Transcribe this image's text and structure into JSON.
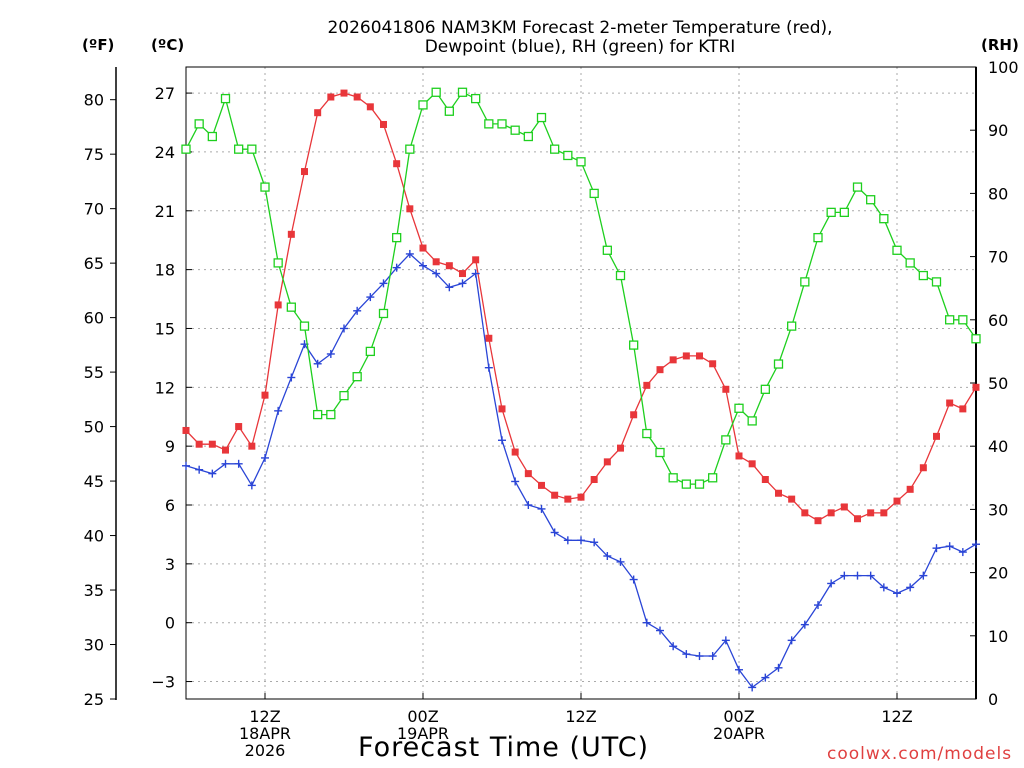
{
  "header": {
    "title_line1": "2026041806 NAM3KM Forecast 2-meter Temperature (red),",
    "title_line2": "Dewpoint (blue), RH (green) for KTRI",
    "unit_f": "(ºF)",
    "unit_c": "(ºC)",
    "unit_rh": "(RH)"
  },
  "footer": {
    "x_title": "Forecast Time (UTC)",
    "credit": "coolwx.com/models"
  },
  "colors": {
    "temperature": "#e8363a",
    "dewpoint": "#2a45d6",
    "rh": "#1ecf1e",
    "grid": "#aaaaaa",
    "credit": "#e04040"
  },
  "chart_data": {
    "type": "line",
    "x_unit": "forecast hour (0 = 2026-04-18 06Z)",
    "x": [
      0,
      1,
      2,
      3,
      4,
      5,
      6,
      7,
      8,
      9,
      10,
      11,
      12,
      13,
      14,
      15,
      16,
      17,
      18,
      19,
      20,
      21,
      22,
      23,
      24,
      25,
      26,
      27,
      28,
      29,
      30,
      31,
      32,
      33,
      34,
      35,
      36,
      37,
      38,
      39,
      40,
      41,
      42,
      43,
      44,
      45,
      46,
      47,
      48,
      49,
      50,
      51,
      52,
      53,
      54,
      55,
      56,
      57,
      58,
      59,
      60
    ],
    "xlim": [
      0,
      60
    ],
    "x_ticks": [
      {
        "hour": 6,
        "labels": [
          "12Z",
          "18APR",
          "2026"
        ]
      },
      {
        "hour": 18,
        "labels": [
          "00Z",
          "19APR"
        ]
      },
      {
        "hour": 30,
        "labels": [
          "12Z"
        ]
      },
      {
        "hour": 42,
        "labels": [
          "00Z",
          "20APR"
        ]
      },
      {
        "hour": 54,
        "labels": [
          "12Z"
        ]
      }
    ],
    "y_left_f": {
      "label": "(ºF)",
      "ticks": [
        "80",
        "75",
        "70",
        "65",
        "60",
        "55",
        "50",
        "45",
        "40",
        "35",
        "30",
        "25"
      ],
      "range": [
        25,
        83
      ]
    },
    "y_left_c": {
      "label": "(ºC)",
      "ticks": [
        "27",
        "24",
        "21",
        "18",
        "15",
        "12",
        "9",
        "6",
        "3",
        "0",
        "−3"
      ],
      "range": [
        -3.89,
        28.33
      ]
    },
    "y_right_rh": {
      "label": "(RH)",
      "ticks": [
        "100",
        "90",
        "80",
        "70",
        "60",
        "50",
        "40",
        "30",
        "20",
        "10",
        "0"
      ],
      "range": [
        0,
        100
      ]
    },
    "xlabel": "Forecast Time (UTC)",
    "series": [
      {
        "name": "2-meter Temperature",
        "axis": "C",
        "marker": "filled-square",
        "values": [
          9.8,
          9.1,
          9.1,
          8.8,
          10.0,
          9.0,
          11.6,
          16.2,
          19.8,
          23.0,
          26.0,
          26.8,
          27.0,
          26.8,
          26.3,
          25.4,
          23.4,
          21.1,
          19.1,
          18.4,
          18.2,
          17.8,
          18.5,
          14.5,
          10.9,
          8.7,
          7.6,
          7.0,
          6.5,
          6.3,
          6.4,
          7.3,
          8.2,
          8.9,
          10.6,
          12.1,
          12.9,
          13.4,
          13.6,
          13.6,
          13.2,
          11.9,
          8.5,
          8.1,
          7.3,
          6.6,
          6.3,
          5.6,
          5.2,
          5.6,
          5.9,
          5.3,
          5.6,
          5.6,
          6.2,
          6.8,
          7.9,
          9.5,
          11.2,
          10.9,
          12.0
        ]
      },
      {
        "name": "Dewpoint",
        "axis": "C",
        "marker": "plus",
        "values": [
          8.0,
          7.8,
          7.6,
          8.1,
          8.1,
          7.0,
          8.4,
          10.8,
          12.5,
          14.2,
          13.2,
          13.7,
          15.0,
          15.9,
          16.6,
          17.3,
          18.1,
          18.8,
          18.2,
          17.8,
          17.1,
          17.3,
          17.8,
          13.0,
          9.3,
          7.2,
          6.0,
          5.8,
          4.6,
          4.2,
          4.2,
          4.1,
          3.4,
          3.1,
          2.2,
          0.0,
          -0.4,
          -1.2,
          -1.6,
          -1.7,
          -1.7,
          -0.9,
          -2.4,
          -3.3,
          -2.8,
          -2.3,
          -0.9,
          -0.1,
          0.9,
          2.0,
          2.4,
          2.4,
          2.4,
          1.8,
          1.5,
          1.8,
          2.4,
          3.8,
          3.9,
          3.6,
          4.0
        ]
      },
      {
        "name": "Relative Humidity",
        "axis": "RH",
        "marker": "open-square",
        "values": [
          87,
          91,
          89,
          95,
          87,
          87,
          81,
          69,
          62,
          59,
          45,
          45,
          48,
          51,
          55,
          61,
          73,
          87,
          94,
          96,
          93,
          96,
          95,
          91,
          91,
          90,
          89,
          92,
          87,
          86,
          85,
          80,
          71,
          67,
          56,
          42,
          39,
          35,
          34,
          34,
          35,
          41,
          46,
          44,
          49,
          53,
          59,
          66,
          73,
          77,
          77,
          81,
          79,
          76,
          71,
          69,
          67,
          66,
          60,
          60,
          57
        ]
      }
    ]
  }
}
